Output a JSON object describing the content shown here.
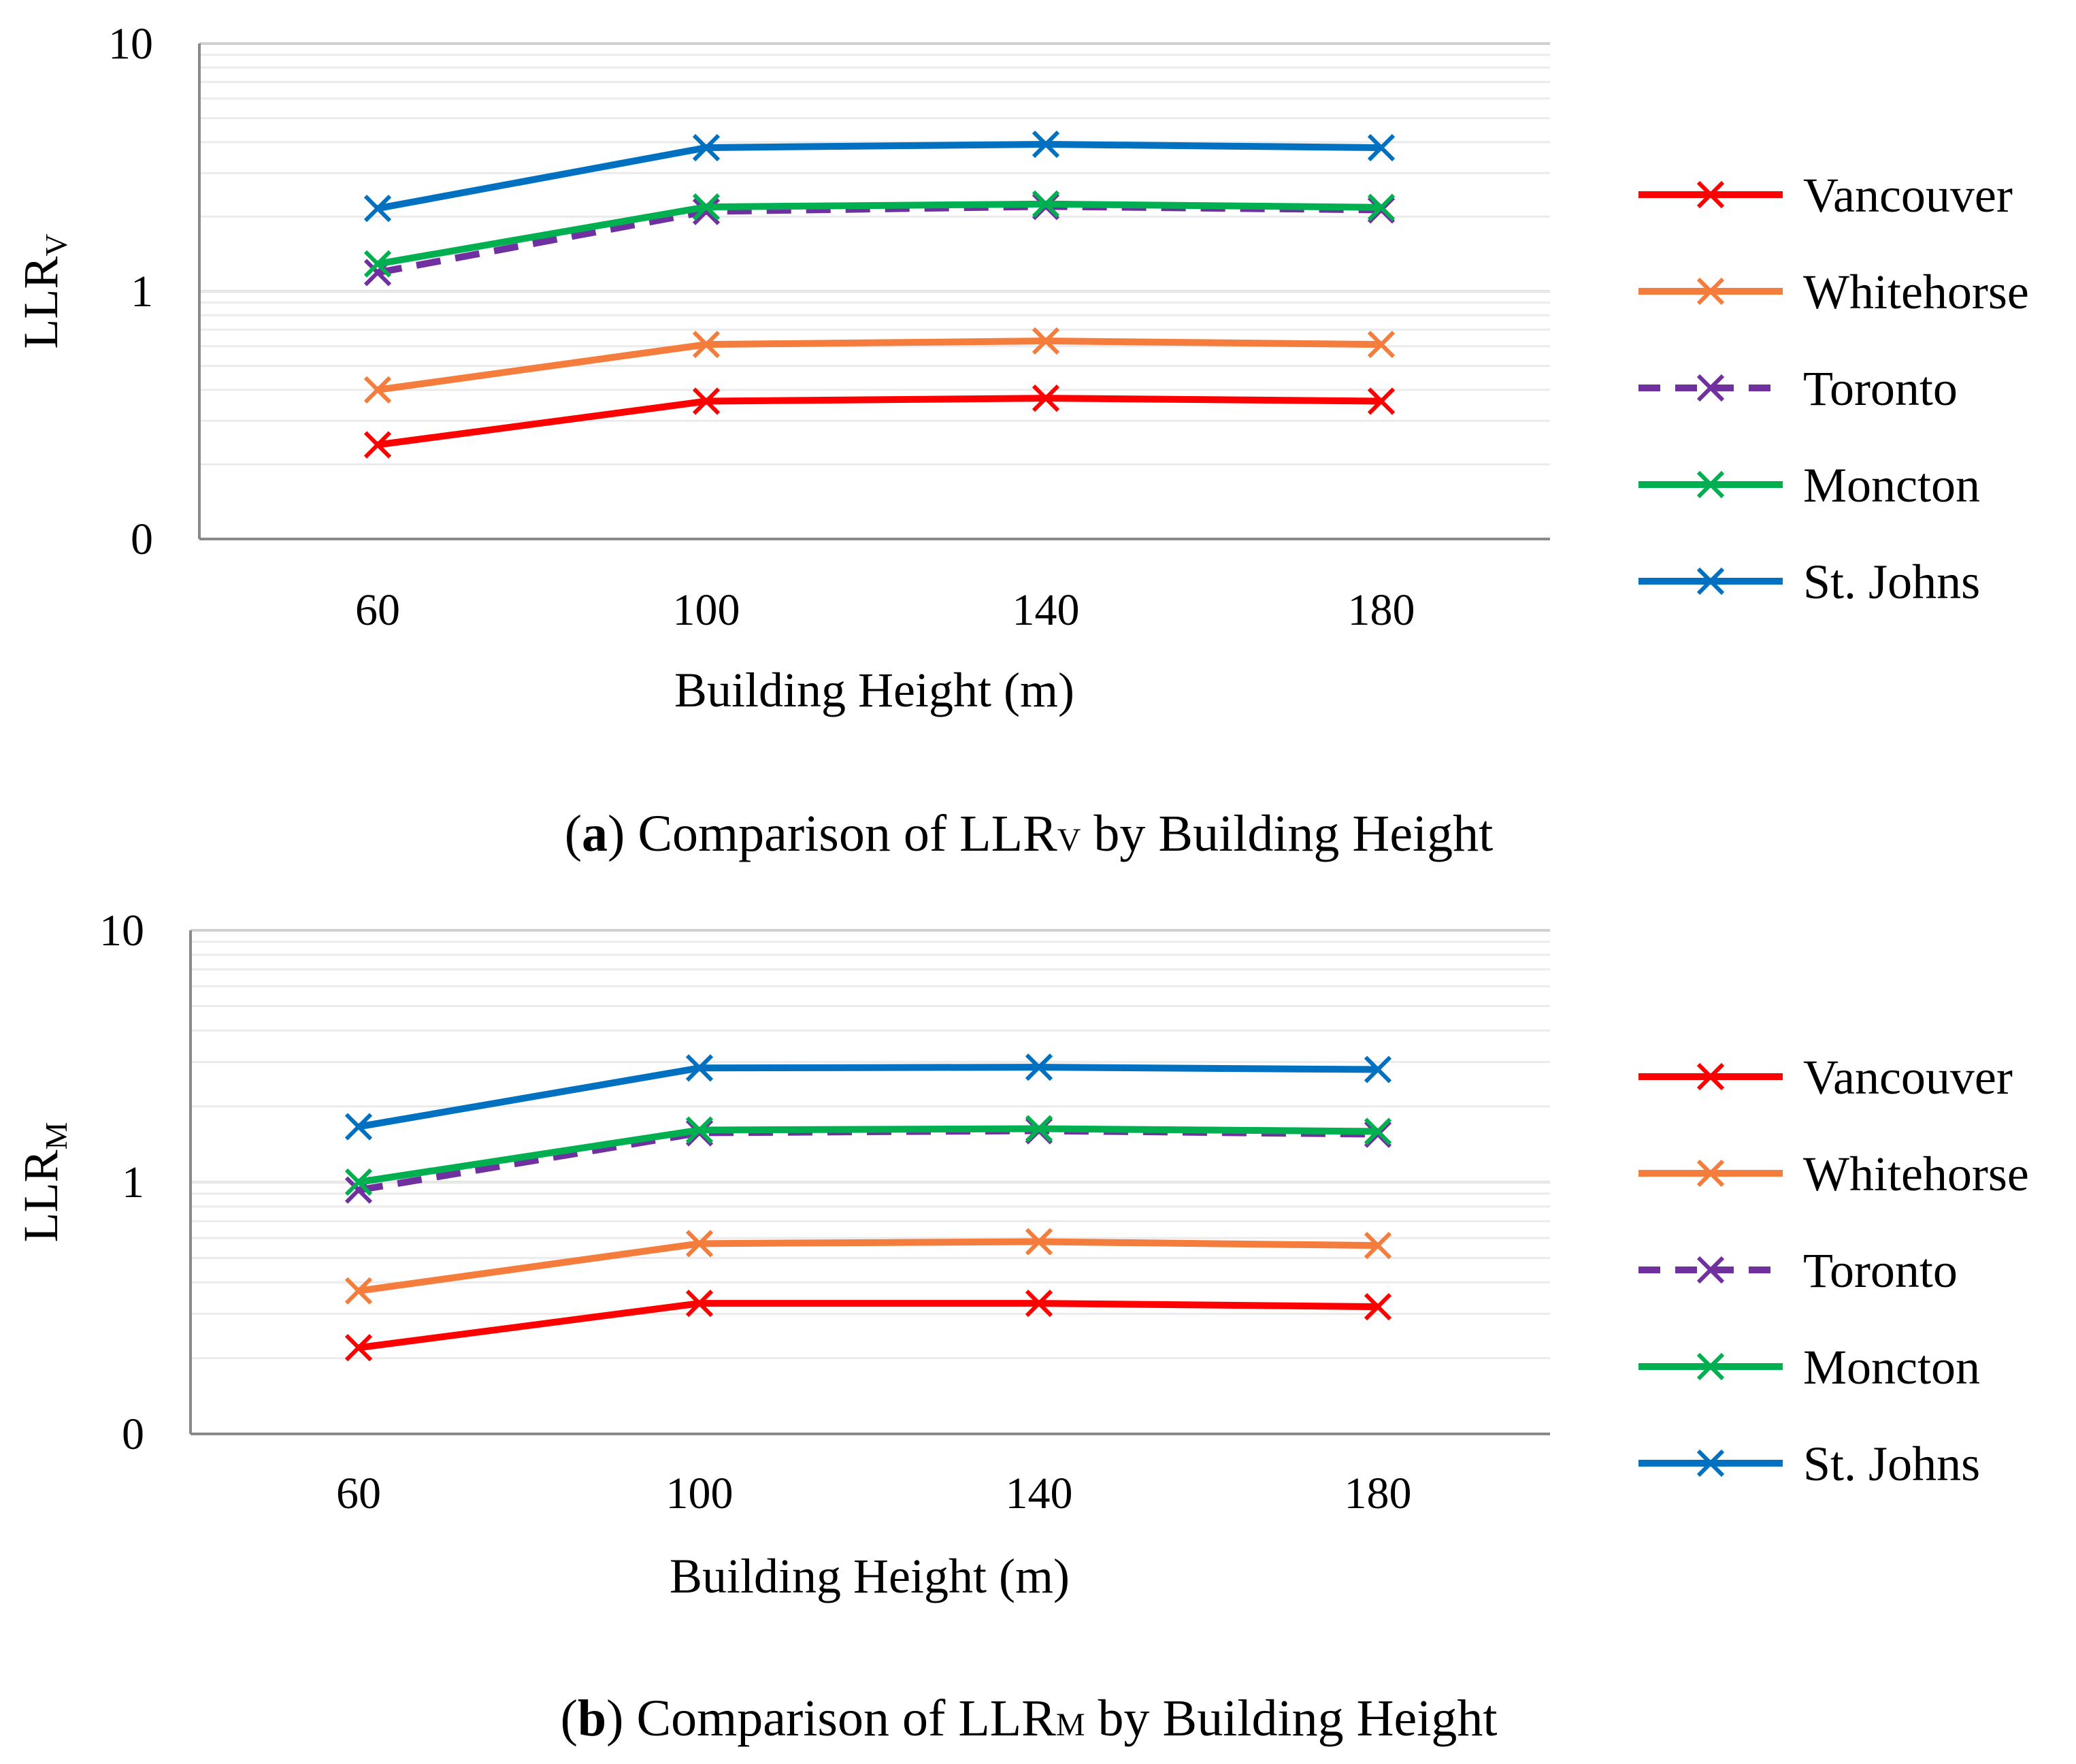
{
  "chart_data": [
    {
      "type": "line",
      "caption": {
        "open": "(",
        "letter": "a",
        "close": ") Comparison of LLR",
        "sub": "V",
        "rest": " by Building Height"
      },
      "ylabel": {
        "main": "LLR",
        "sub": "V"
      },
      "xlabel": "Building Height (m)",
      "x": [
        "60",
        "100",
        "140",
        "180"
      ],
      "y_scale": "log",
      "y_ticks": [
        {
          "value": 0.1,
          "label": "0"
        },
        {
          "value": 1,
          "label": "1"
        },
        {
          "value": 10,
          "label": "10"
        }
      ],
      "ylim": [
        0.1,
        10
      ],
      "grid": true,
      "legend_position": "right",
      "series": [
        {
          "name": "Vancouver",
          "color": "#FF0000",
          "dashed": false,
          "values": [
            0.24,
            0.36,
            0.37,
            0.36
          ]
        },
        {
          "name": "Whitehorse",
          "color": "#F47C3C",
          "dashed": false,
          "values": [
            0.4,
            0.61,
            0.63,
            0.61
          ]
        },
        {
          "name": "Toronto",
          "color": "#7030A0",
          "dashed": true,
          "values": [
            1.19,
            2.1,
            2.2,
            2.13
          ]
        },
        {
          "name": "Moncton",
          "color": "#00B050",
          "dashed": false,
          "values": [
            1.29,
            2.19,
            2.25,
            2.18
          ]
        },
        {
          "name": "St. Johns",
          "color": "#0070C0",
          "dashed": false,
          "values": [
            2.16,
            3.8,
            3.92,
            3.8
          ]
        }
      ]
    },
    {
      "type": "line",
      "caption": {
        "open": "(",
        "letter": "b",
        "close": ") Comparison of LLR",
        "sub": "M",
        "rest": " by Building Height"
      },
      "ylabel": {
        "main": "LLR",
        "sub": "M"
      },
      "xlabel": "Building Height (m)",
      "x": [
        "60",
        "100",
        "140",
        "180"
      ],
      "y_scale": "log",
      "y_ticks": [
        {
          "value": 0.1,
          "label": "0"
        },
        {
          "value": 1,
          "label": "1"
        },
        {
          "value": 10,
          "label": "10"
        }
      ],
      "ylim": [
        0.1,
        10
      ],
      "grid": true,
      "legend_position": "right",
      "series": [
        {
          "name": "Vancouver",
          "color": "#FF0000",
          "dashed": false,
          "values": [
            0.22,
            0.33,
            0.33,
            0.32
          ]
        },
        {
          "name": "Whitehorse",
          "color": "#F47C3C",
          "dashed": false,
          "values": [
            0.37,
            0.57,
            0.58,
            0.56
          ]
        },
        {
          "name": "Toronto",
          "color": "#7030A0",
          "dashed": true,
          "values": [
            0.93,
            1.57,
            1.6,
            1.55
          ]
        },
        {
          "name": "Moncton",
          "color": "#00B050",
          "dashed": false,
          "values": [
            1.0,
            1.61,
            1.63,
            1.59
          ]
        },
        {
          "name": "St. Johns",
          "color": "#0070C0",
          "dashed": false,
          "values": [
            1.66,
            2.84,
            2.86,
            2.8
          ]
        }
      ]
    }
  ]
}
